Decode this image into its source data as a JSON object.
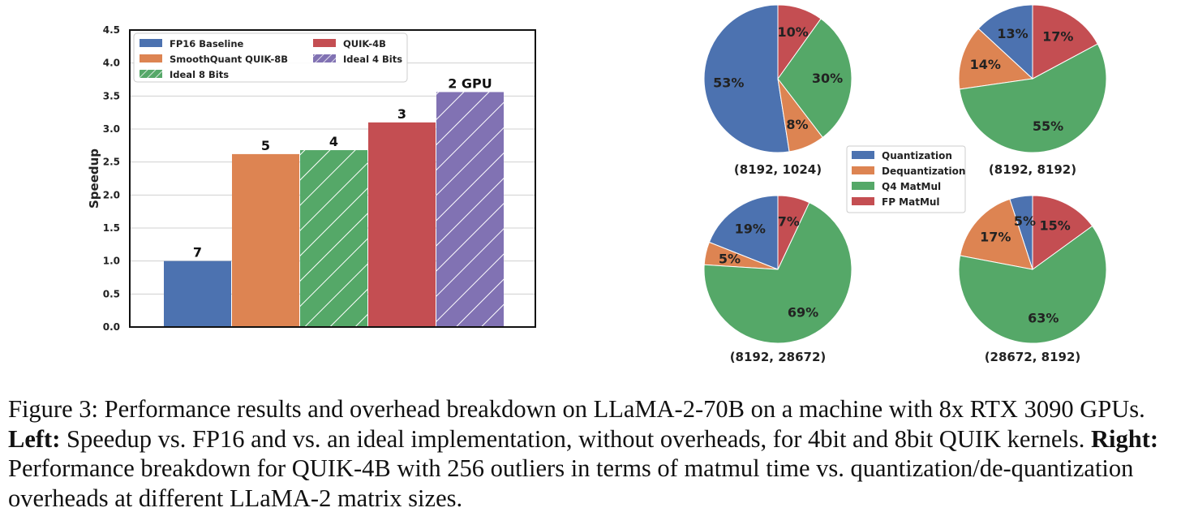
{
  "chart_data": [
    {
      "type": "bar",
      "ylabel": "Speedup",
      "ylim": [
        0,
        4.5
      ],
      "yticks": [
        "0.0",
        "0.5",
        "1.0",
        "1.5",
        "2.0",
        "2.5",
        "3.0",
        "3.5",
        "4.0",
        "4.5"
      ],
      "grid": true,
      "legend_position": "top-left",
      "series": [
        {
          "name": "FP16 Baseline",
          "value": 1.0,
          "label": "7",
          "color": "#4c72b0",
          "hatch": false
        },
        {
          "name": "SmoothQuant QUIK-8B",
          "value": 2.62,
          "label": "5",
          "color": "#dd8452",
          "hatch": false
        },
        {
          "name": "Ideal 8 Bits",
          "value": 2.68,
          "label": "4",
          "color": "#55a868",
          "hatch": true
        },
        {
          "name": "QUIK-4B",
          "value": 3.1,
          "label": "3",
          "color": "#c44e52",
          "hatch": false
        },
        {
          "name": "Ideal 4 Bits",
          "value": 3.56,
          "label": "2 GPU",
          "color": "#8172b3",
          "hatch": true
        }
      ]
    },
    {
      "type": "pie",
      "legend_position": "center",
      "categories": [
        "Quantization",
        "Dequantization",
        "Q4 MatMul",
        "FP MatMul"
      ],
      "colors": [
        "#4c72b0",
        "#dd8452",
        "#55a868",
        "#c44e52"
      ],
      "pies": [
        {
          "title": "(8192, 1024)",
          "values": [
            53,
            8,
            30,
            10
          ],
          "labels": [
            "53%",
            "8%",
            "30%",
            "10%"
          ]
        },
        {
          "title": "(8192, 8192)",
          "values": [
            13,
            14,
            55,
            17
          ],
          "labels": [
            "13%",
            "14%",
            "55%",
            "17%"
          ]
        },
        {
          "title": "(8192, 28672)",
          "values": [
            19,
            5,
            69,
            7
          ],
          "labels": [
            "19%",
            "5%",
            "69%",
            "7%"
          ]
        },
        {
          "title": "(28672, 8192)",
          "values": [
            5,
            17,
            63,
            15
          ],
          "labels": [
            "5%",
            "17%",
            "63%",
            "15%"
          ]
        }
      ]
    }
  ],
  "caption": {
    "label": "Figure 3:",
    "text1": "Performance results and overhead breakdown on LLaMA-2-70B on a machine with 8x RTX 3090 GPUs.",
    "left_label": "Left:",
    "text2": "Speedup vs. FP16 and vs. an ideal implementation, without overheads, for 4bit and 8bit QUIK kernels.",
    "right_label": "Right:",
    "text3": "Performance breakdown for QUIK-4B with 256 outliers in terms of matmul time vs. quantization/de-quantization overheads at different LLaMA-2 matrix sizes."
  }
}
